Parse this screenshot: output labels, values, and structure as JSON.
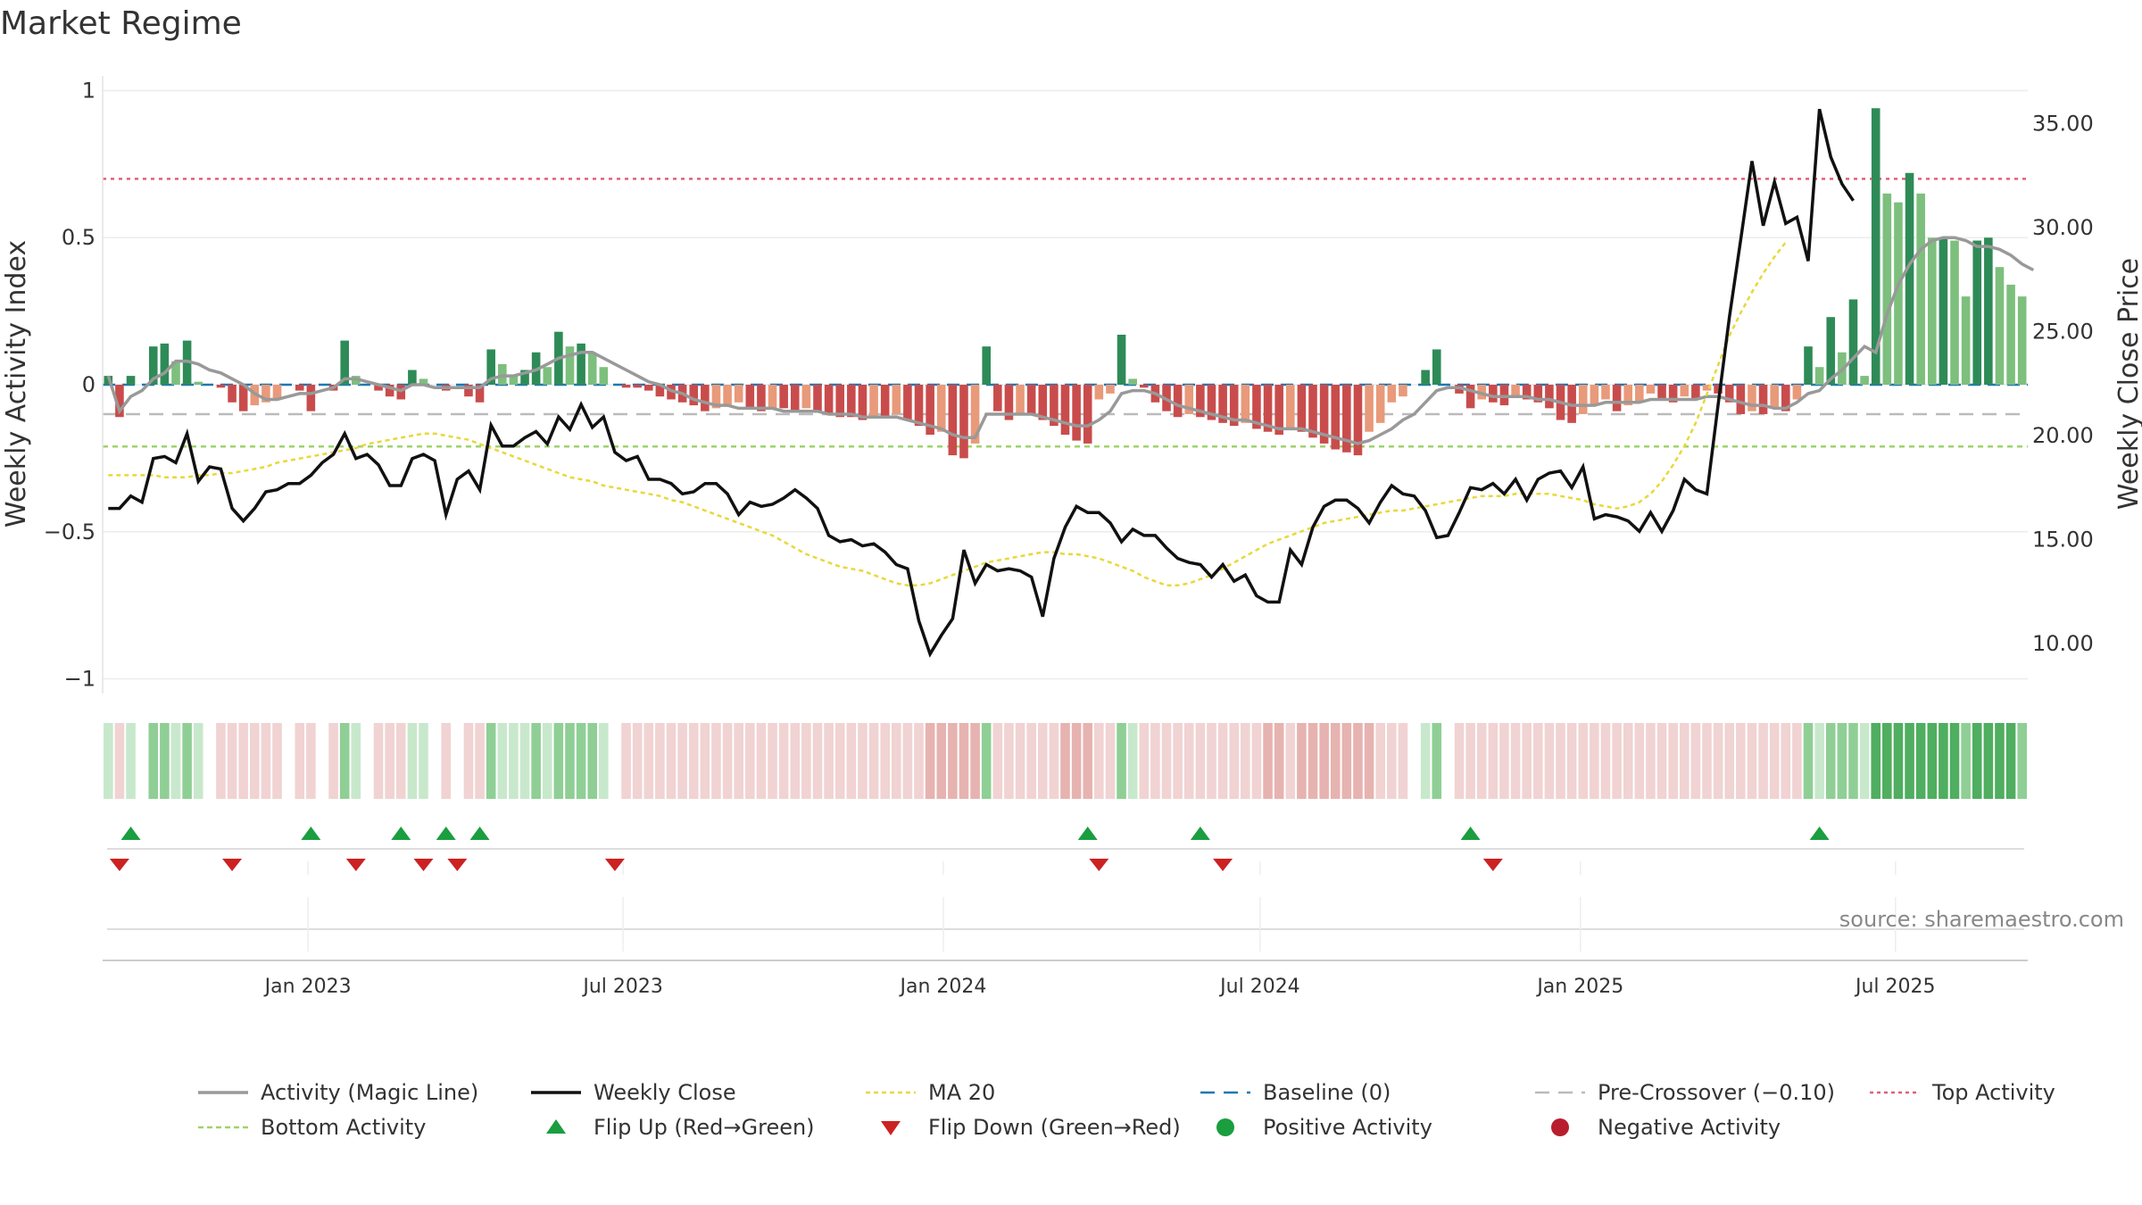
{
  "title": "Market Regime",
  "source": "source: sharemaestro.com",
  "colors": {
    "positive_strong": "#2e8b57",
    "positive_light": "#7dbf7d",
    "negative_strong": "#c94c4c",
    "negative_light": "#e89a7a",
    "magic_line": "#999999",
    "weekly_close": "#111111",
    "ma20": "#e8d83a",
    "baseline": "#1f77b4",
    "pre_crossover": "#bbbbbb",
    "top_activity": "#e0607a",
    "bottom_activity": "#9fd36b",
    "flip_up": "#1a9e3f",
    "flip_down": "#cc2222"
  },
  "chart_data": {
    "type": "bar",
    "title": "Market Regime",
    "x_axis": {
      "type": "date",
      "start": "2022-09-05",
      "end": "2025-09-15",
      "ticks": [
        {
          "date": "2023-01-01",
          "label": "Jan 2023"
        },
        {
          "date": "2023-07-01",
          "label": "Jul 2023"
        },
        {
          "date": "2024-01-01",
          "label": "Jan 2024"
        },
        {
          "date": "2024-07-01",
          "label": "Jul 2024"
        },
        {
          "date": "2025-01-01",
          "label": "Jan 2025"
        },
        {
          "date": "2025-07-01",
          "label": "Jul 2025"
        }
      ]
    },
    "y_left": {
      "label": "Weekly Activity Index",
      "range": [
        -1.05,
        1.05
      ],
      "ticks": [
        {
          "value": 1,
          "label": "1"
        },
        {
          "value": 0.5,
          "label": "0.5"
        },
        {
          "value": 0,
          "label": "0"
        },
        {
          "value": -0.5,
          "label": "−0.5"
        },
        {
          "value": -1,
          "label": "−1"
        }
      ]
    },
    "y_right": {
      "label": "Weekly Close Price",
      "range": [
        7.6,
        37.3
      ],
      "ticks": [
        {
          "value": 35,
          "label": "35.00"
        },
        {
          "value": 30,
          "label": "30.00"
        },
        {
          "value": 25,
          "label": "25.00"
        },
        {
          "value": 20,
          "label": "20.00"
        },
        {
          "value": 15,
          "label": "15.00"
        },
        {
          "value": 10,
          "label": "10.00"
        }
      ]
    },
    "reference_lines": {
      "top_activity": 0.7,
      "bottom_activity": -0.21,
      "pre_crossover": -0.1,
      "baseline": 0
    },
    "activity_bars": [
      0.03,
      -0.11,
      0.03,
      0.0,
      0.13,
      0.14,
      0.08,
      0.15,
      0.01,
      0.0,
      -0.01,
      -0.06,
      -0.09,
      -0.07,
      -0.06,
      -0.05,
      0.0,
      -0.02,
      -0.09,
      0.0,
      -0.02,
      0.15,
      0.03,
      0.0,
      -0.02,
      -0.04,
      -0.05,
      0.05,
      0.02,
      0.0,
      -0.02,
      0.0,
      -0.04,
      -0.06,
      0.12,
      0.07,
      0.03,
      0.05,
      0.11,
      0.06,
      0.18,
      0.13,
      0.14,
      0.11,
      0.06,
      0.0,
      -0.01,
      -0.01,
      -0.02,
      -0.04,
      -0.05,
      -0.06,
      -0.07,
      -0.09,
      -0.08,
      -0.07,
      -0.06,
      -0.08,
      -0.09,
      -0.08,
      -0.08,
      -0.09,
      -0.08,
      -0.09,
      -0.1,
      -0.11,
      -0.11,
      -0.12,
      -0.11,
      -0.11,
      -0.1,
      -0.12,
      -0.14,
      -0.17,
      -0.16,
      -0.24,
      -0.25,
      -0.2,
      0.13,
      -0.09,
      -0.12,
      -0.1,
      -0.1,
      -0.12,
      -0.14,
      -0.17,
      -0.19,
      -0.2,
      -0.05,
      -0.03,
      0.17,
      0.02,
      -0.01,
      -0.06,
      -0.09,
      -0.11,
      -0.1,
      -0.11,
      -0.12,
      -0.13,
      -0.14,
      -0.13,
      -0.15,
      -0.16,
      -0.17,
      -0.15,
      -0.16,
      -0.18,
      -0.2,
      -0.22,
      -0.23,
      -0.24,
      -0.16,
      -0.13,
      -0.06,
      -0.04,
      0.0,
      0.05,
      0.12,
      0.0,
      -0.03,
      -0.08,
      -0.05,
      -0.06,
      -0.07,
      -0.04,
      -0.05,
      -0.06,
      -0.08,
      -0.12,
      -0.13,
      -0.1,
      -0.07,
      -0.05,
      -0.09,
      -0.07,
      -0.06,
      -0.03,
      -0.05,
      -0.06,
      -0.04,
      -0.05,
      -0.02,
      -0.03,
      -0.06,
      -0.1,
      -0.09,
      -0.1,
      -0.08,
      -0.09,
      -0.05,
      0.13,
      0.06,
      0.23,
      0.11,
      0.29,
      0.03,
      0.94,
      0.65,
      0.62,
      0.72,
      0.65,
      0.5,
      0.5,
      0.49,
      0.3,
      0.49,
      0.5,
      0.4,
      0.34,
      0.3
    ],
    "magic_line": [
      0.03,
      -0.09,
      -0.04,
      -0.02,
      0.02,
      0.04,
      0.08,
      0.08,
      0.07,
      0.05,
      0.04,
      0.02,
      0.0,
      -0.03,
      -0.05,
      -0.05,
      -0.04,
      -0.03,
      -0.03,
      -0.02,
      -0.01,
      0.02,
      0.02,
      0.01,
      0.0,
      -0.01,
      -0.02,
      0.0,
      0.0,
      -0.01,
      -0.01,
      -0.01,
      -0.01,
      -0.01,
      0.02,
      0.03,
      0.03,
      0.04,
      0.05,
      0.07,
      0.09,
      0.1,
      0.11,
      0.11,
      0.09,
      0.07,
      0.05,
      0.03,
      0.01,
      0.0,
      -0.02,
      -0.03,
      -0.05,
      -0.06,
      -0.07,
      -0.07,
      -0.08,
      -0.08,
      -0.08,
      -0.08,
      -0.09,
      -0.09,
      -0.09,
      -0.09,
      -0.1,
      -0.1,
      -0.1,
      -0.11,
      -0.11,
      -0.11,
      -0.11,
      -0.12,
      -0.13,
      -0.14,
      -0.15,
      -0.17,
      -0.18,
      -0.18,
      -0.1,
      -0.1,
      -0.1,
      -0.1,
      -0.1,
      -0.11,
      -0.12,
      -0.13,
      -0.14,
      -0.14,
      -0.12,
      -0.09,
      -0.03,
      -0.02,
      -0.02,
      -0.03,
      -0.05,
      -0.07,
      -0.08,
      -0.09,
      -0.1,
      -0.11,
      -0.12,
      -0.12,
      -0.13,
      -0.14,
      -0.15,
      -0.15,
      -0.15,
      -0.16,
      -0.17,
      -0.18,
      -0.19,
      -0.2,
      -0.19,
      -0.17,
      -0.15,
      -0.12,
      -0.1,
      -0.06,
      -0.02,
      -0.01,
      -0.01,
      -0.02,
      -0.03,
      -0.04,
      -0.04,
      -0.04,
      -0.04,
      -0.05,
      -0.05,
      -0.06,
      -0.07,
      -0.07,
      -0.07,
      -0.06,
      -0.06,
      -0.06,
      -0.06,
      -0.05,
      -0.05,
      -0.05,
      -0.05,
      -0.05,
      -0.04,
      -0.04,
      -0.05,
      -0.06,
      -0.07,
      -0.07,
      -0.08,
      -0.08,
      -0.06,
      -0.03,
      -0.02,
      0.02,
      0.05,
      0.09,
      0.13,
      0.11,
      0.24,
      0.34,
      0.41,
      0.46,
      0.49,
      0.5,
      0.5,
      0.49,
      0.47,
      0.47,
      0.46,
      0.44,
      0.41,
      0.39
    ],
    "weekly_close": [
      16.5,
      16.5,
      17.1,
      16.8,
      18.9,
      19.0,
      18.7,
      20.1,
      17.8,
      18.5,
      18.4,
      16.5,
      15.9,
      16.5,
      17.3,
      17.4,
      17.7,
      17.7,
      18.1,
      18.7,
      19.1,
      20.1,
      18.9,
      19.1,
      18.6,
      17.6,
      17.6,
      18.9,
      19.1,
      18.8,
      16.2,
      17.9,
      18.3,
      17.4,
      20.5,
      19.5,
      19.5,
      19.9,
      20.2,
      19.6,
      20.9,
      20.3,
      21.5,
      20.4,
      20.9,
      19.2,
      18.8,
      19.0,
      17.9,
      17.9,
      17.7,
      17.2,
      17.3,
      17.7,
      17.7,
      17.2,
      16.2,
      16.8,
      16.6,
      16.7,
      17.0,
      17.4,
      17.0,
      16.5,
      15.2,
      14.9,
      15.0,
      14.7,
      14.8,
      14.4,
      13.8,
      13.6,
      11.1,
      9.5,
      10.4,
      11.2,
      14.5,
      12.9,
      13.8,
      13.5,
      13.6,
      13.5,
      13.2,
      11.3,
      14.1,
      15.6,
      16.6,
      16.3,
      16.3,
      15.8,
      14.9,
      15.5,
      15.2,
      15.2,
      14.6,
      14.1,
      13.9,
      13.8,
      13.2,
      13.8,
      13.0,
      13.3,
      12.3,
      12.0,
      12.0,
      14.5,
      13.8,
      15.6,
      16.6,
      16.9,
      16.9,
      16.5,
      15.8,
      16.8,
      17.6,
      17.2,
      17.1,
      16.4,
      15.1,
      15.2,
      16.3,
      17.5,
      17.4,
      17.7,
      17.2,
      17.9,
      16.9,
      17.9,
      18.2,
      18.3,
      17.5,
      18.5,
      16.0,
      16.2,
      16.1,
      15.9,
      15.4,
      16.3,
      15.4,
      16.4,
      17.9,
      17.4,
      17.2,
      21.5,
      25.7,
      29.4,
      33.2,
      30.1,
      32.2,
      30.2,
      30.5,
      28.4,
      35.7,
      33.4,
      32.1,
      31.3
    ],
    "ma20": [
      18.1,
      18.1,
      18.1,
      18.1,
      18.1,
      18.0,
      18.0,
      18.0,
      18.1,
      18.1,
      18.2,
      18.2,
      18.3,
      18.4,
      18.5,
      18.7,
      18.8,
      18.9,
      19.0,
      19.1,
      19.2,
      19.3,
      19.4,
      19.6,
      19.7,
      19.8,
      19.9,
      20.0,
      20.1,
      20.1,
      20.0,
      19.9,
      19.8,
      19.6,
      19.4,
      19.2,
      19.0,
      18.8,
      18.6,
      18.4,
      18.2,
      18.0,
      17.9,
      17.8,
      17.6,
      17.5,
      17.4,
      17.3,
      17.2,
      17.1,
      16.9,
      16.8,
      16.6,
      16.4,
      16.2,
      16.0,
      15.8,
      15.6,
      15.4,
      15.2,
      14.9,
      14.6,
      14.3,
      14.1,
      13.9,
      13.7,
      13.6,
      13.5,
      13.3,
      13.1,
      12.9,
      12.8,
      12.8,
      12.9,
      13.1,
      13.3,
      13.5,
      13.7,
      13.9,
      14.0,
      14.1,
      14.2,
      14.3,
      14.4,
      14.4,
      14.3,
      14.3,
      14.2,
      14.1,
      13.9,
      13.7,
      13.5,
      13.2,
      13.0,
      12.8,
      12.8,
      12.9,
      13.1,
      13.3,
      13.6,
      13.9,
      14.2,
      14.5,
      14.8,
      15.0,
      15.2,
      15.4,
      15.6,
      15.8,
      15.9,
      16.0,
      16.1,
      16.2,
      16.3,
      16.4,
      16.4,
      16.5,
      16.6,
      16.7,
      16.8,
      16.9,
      17.0,
      17.1,
      17.1,
      17.1,
      17.2,
      17.2,
      17.2,
      17.2,
      17.1,
      17.0,
      16.9,
      16.7,
      16.6,
      16.5,
      16.6,
      16.8,
      17.2,
      17.8,
      18.6,
      19.5,
      20.6,
      22.0,
      23.4,
      24.8,
      25.9,
      26.9,
      27.8,
      28.6,
      29.3
    ],
    "flip_up_weeks": [
      2,
      18,
      26,
      30,
      33,
      87,
      97,
      121,
      152
    ],
    "flip_down_weeks": [
      1,
      11,
      22,
      28,
      31,
      45,
      88,
      99,
      123
    ],
    "legend": [
      {
        "label": "Activity (Magic Line)",
        "style": "magic"
      },
      {
        "label": "Weekly Close",
        "style": "close"
      },
      {
        "label": "MA 20",
        "style": "ma"
      },
      {
        "label": "Baseline (0)",
        "style": "baseline"
      },
      {
        "label": "Pre-Crossover (−0.10)",
        "style": "precross"
      },
      {
        "label": "Top Activity",
        "style": "top"
      },
      {
        "label": "Bottom Activity",
        "style": "bottom"
      },
      {
        "label": "Flip Up (Red→Green)",
        "style": "flipup"
      },
      {
        "label": "Flip Down (Green→Red)",
        "style": "flipdown"
      },
      {
        "label": "Positive Activity",
        "style": "pos"
      },
      {
        "label": "Negative Activity",
        "style": "neg"
      }
    ]
  }
}
